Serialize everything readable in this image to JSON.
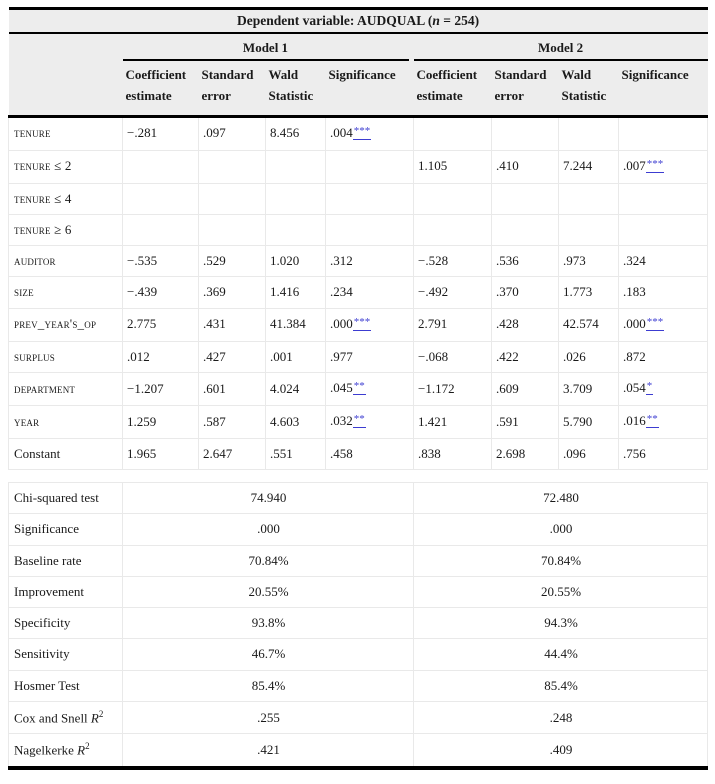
{
  "title": {
    "prefix": "Dependent variable: AUDQUAL (",
    "n": "n",
    "suffix": " = 254)"
  },
  "models": [
    {
      "label": "Model 1"
    },
    {
      "label": "Model 2"
    }
  ],
  "headers": {
    "coef": "Coefficient estimate",
    "std": "Standard error",
    "wald": "Wald Statistic",
    "sig": "Significance"
  },
  "colors": {
    "stars_link": "#3c3cd1",
    "header_bg": "#ededed",
    "grid": "#e9e9e9",
    "rule": "#000000"
  },
  "coefficient_rows": [
    {
      "label": "tenure",
      "caps": true,
      "m1": [
        "−.281",
        ".097",
        "8.456",
        ".004"
      ],
      "m1_stars": "***",
      "m2": [
        "",
        "",
        "",
        ""
      ],
      "m2_stars": ""
    },
    {
      "label": "tenure ≤ 2",
      "caps": true,
      "m1": [
        "",
        "",
        "",
        ""
      ],
      "m1_stars": "",
      "m2": [
        "1.105",
        ".410",
        "7.244",
        ".007"
      ],
      "m2_stars": "***"
    },
    {
      "label": "tenure ≤ 4",
      "caps": true,
      "m1": [
        "",
        "",
        "",
        ""
      ],
      "m1_stars": "",
      "m2": [
        "",
        "",
        "",
        ""
      ],
      "m2_stars": ""
    },
    {
      "label": "tenure ≥ 6",
      "caps": true,
      "m1": [
        "",
        "",
        "",
        ""
      ],
      "m1_stars": "",
      "m2": [
        "",
        "",
        "",
        ""
      ],
      "m2_stars": ""
    },
    {
      "label": "auditor",
      "caps": true,
      "m1": [
        "−.535",
        ".529",
        "1.020",
        ".312"
      ],
      "m1_stars": "",
      "m2": [
        "−.528",
        ".536",
        ".973",
        ".324"
      ],
      "m2_stars": ""
    },
    {
      "label": "size",
      "caps": true,
      "m1": [
        "−.439",
        ".369",
        "1.416",
        ".234"
      ],
      "m1_stars": "",
      "m2": [
        "−.492",
        ".370",
        "1.773",
        ".183"
      ],
      "m2_stars": ""
    },
    {
      "label": "prev_year's_op",
      "caps": true,
      "m1": [
        "2.775",
        ".431",
        "41.384",
        ".000"
      ],
      "m1_stars": "***",
      "m2": [
        "2.791",
        ".428",
        "42.574",
        ".000"
      ],
      "m2_stars": "***"
    },
    {
      "label": "surplus",
      "caps": true,
      "m1": [
        ".012",
        ".427",
        ".001",
        ".977"
      ],
      "m1_stars": "",
      "m2": [
        "−.068",
        ".422",
        ".026",
        ".872"
      ],
      "m2_stars": ""
    },
    {
      "label": "department",
      "caps": true,
      "m1": [
        "−1.207",
        ".601",
        "4.024",
        ".045"
      ],
      "m1_stars": "**",
      "m2": [
        "−1.172",
        ".609",
        "3.709",
        ".054"
      ],
      "m2_stars": "*"
    },
    {
      "label": "year",
      "caps": true,
      "m1": [
        "1.259",
        ".587",
        "4.603",
        ".032"
      ],
      "m1_stars": "**",
      "m2": [
        "1.421",
        ".591",
        "5.790",
        ".016"
      ],
      "m2_stars": "**"
    },
    {
      "label": "Constant",
      "caps": false,
      "m1": [
        "1.965",
        "2.647",
        ".551",
        ".458"
      ],
      "m1_stars": "",
      "m2": [
        ".838",
        "2.698",
        ".096",
        ".756"
      ],
      "m2_stars": ""
    }
  ],
  "summary_rows": [
    {
      "label": "Chi-squared test",
      "r2": false,
      "m1": "74.940",
      "m2": "72.480"
    },
    {
      "label": "Significance",
      "r2": false,
      "m1": ".000",
      "m2": ".000"
    },
    {
      "label": "Baseline rate",
      "r2": false,
      "m1": "70.84%",
      "m2": "70.84%"
    },
    {
      "label": "Improvement",
      "r2": false,
      "m1": "20.55%",
      "m2": "20.55%"
    },
    {
      "label": "Specificity",
      "r2": false,
      "m1": "93.8%",
      "m2": "94.3%"
    },
    {
      "label": "Sensitivity",
      "r2": false,
      "m1": "46.7%",
      "m2": "44.4%"
    },
    {
      "label": "Hosmer Test",
      "r2": false,
      "m1": "85.4%",
      "m2": "85.4%"
    },
    {
      "label": "Cox and Snell",
      "r2": true,
      "m1": ".255",
      "m2": ".248"
    },
    {
      "label": "Nagelkerke",
      "r2": true,
      "m1": ".421",
      "m2": ".409"
    }
  ],
  "r2_symbol": {
    "letter": "R",
    "exp": "2"
  }
}
